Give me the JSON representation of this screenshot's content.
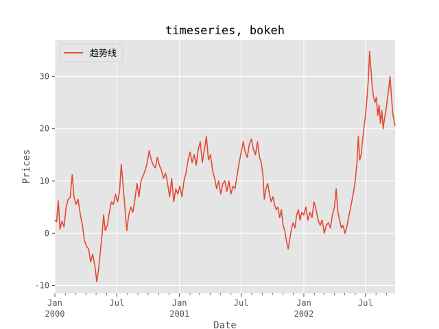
{
  "chart_data": {
    "type": "line",
    "title": "timeseries, bokeh",
    "xlabel": "Date",
    "ylabel": "Prices",
    "xlim": [
      "2000-01-01",
      "2002-09-26"
    ],
    "ylim": [
      -11.5,
      37.0
    ],
    "grid": true,
    "legend_position": "top-left",
    "x_major_ticks": [
      {
        "date": "2000-01-01",
        "line1": "Jan",
        "line2": "2000"
      },
      {
        "date": "2000-07-01",
        "line1": "Jul",
        "line2": ""
      },
      {
        "date": "2001-01-01",
        "line1": "Jan",
        "line2": "2001"
      },
      {
        "date": "2001-07-01",
        "line1": "Jul",
        "line2": ""
      },
      {
        "date": "2002-01-01",
        "line1": "Jan",
        "line2": "2002"
      },
      {
        "date": "2002-07-01",
        "line1": "Jul",
        "line2": ""
      }
    ],
    "y_ticks": [
      -10,
      0,
      10,
      20,
      30
    ],
    "series": [
      {
        "name": "趋势线",
        "color": "#E24A33",
        "points": [
          [
            "2000-01-01",
            2.5
          ],
          [
            "2000-01-06",
            2.2
          ],
          [
            "2000-01-11",
            6.2
          ],
          [
            "2000-01-16",
            0.8
          ],
          [
            "2000-01-22",
            2.3
          ],
          [
            "2000-01-28",
            1.2
          ],
          [
            "2000-02-03",
            5.0
          ],
          [
            "2000-02-09",
            6.5
          ],
          [
            "2000-02-15",
            6.8
          ],
          [
            "2000-02-21",
            11.2
          ],
          [
            "2000-02-26",
            7.0
          ],
          [
            "2000-03-03",
            5.5
          ],
          [
            "2000-03-09",
            6.5
          ],
          [
            "2000-03-16",
            3.5
          ],
          [
            "2000-03-22",
            1.5
          ],
          [
            "2000-03-28",
            -1.5
          ],
          [
            "2000-04-03",
            -2.5
          ],
          [
            "2000-04-09",
            -3.0
          ],
          [
            "2000-04-15",
            -5.5
          ],
          [
            "2000-04-21",
            -4.0
          ],
          [
            "2000-04-28",
            -6.5
          ],
          [
            "2000-05-03",
            -9.3
          ],
          [
            "2000-05-08",
            -7.0
          ],
          [
            "2000-05-13",
            -4.0
          ],
          [
            "2000-05-19",
            0.0
          ],
          [
            "2000-05-23",
            3.5
          ],
          [
            "2000-05-28",
            0.5
          ],
          [
            "2000-06-03",
            1.5
          ],
          [
            "2000-06-09",
            4.0
          ],
          [
            "2000-06-15",
            6.0
          ],
          [
            "2000-06-21",
            5.5
          ],
          [
            "2000-06-27",
            7.5
          ],
          [
            "2000-07-03",
            6.0
          ],
          [
            "2000-07-09",
            8.0
          ],
          [
            "2000-07-14",
            13.2
          ],
          [
            "2000-07-19",
            9.5
          ],
          [
            "2000-07-25",
            4.5
          ],
          [
            "2000-07-30",
            0.5
          ],
          [
            "2000-08-05",
            3.5
          ],
          [
            "2000-08-11",
            5.0
          ],
          [
            "2000-08-17",
            4.0
          ],
          [
            "2000-08-23",
            6.5
          ],
          [
            "2000-08-29",
            9.5
          ],
          [
            "2000-09-04",
            7.0
          ],
          [
            "2000-09-10",
            10.0
          ],
          [
            "2000-09-16",
            11.0
          ],
          [
            "2000-09-22",
            12.0
          ],
          [
            "2000-09-28",
            13.5
          ],
          [
            "2000-10-04",
            15.8
          ],
          [
            "2000-10-10",
            14.0
          ],
          [
            "2000-10-16",
            13.0
          ],
          [
            "2000-10-22",
            12.5
          ],
          [
            "2000-10-28",
            14.5
          ],
          [
            "2000-11-03",
            13.0
          ],
          [
            "2000-11-09",
            12.0
          ],
          [
            "2000-11-15",
            10.5
          ],
          [
            "2000-11-21",
            11.5
          ],
          [
            "2000-11-27",
            9.5
          ],
          [
            "2000-12-03",
            7.0
          ],
          [
            "2000-12-09",
            10.5
          ],
          [
            "2000-12-15",
            6.0
          ],
          [
            "2000-12-21",
            8.5
          ],
          [
            "2000-12-27",
            7.5
          ],
          [
            "2001-01-02",
            9.0
          ],
          [
            "2001-01-08",
            7.0
          ],
          [
            "2001-01-14",
            10.0
          ],
          [
            "2001-01-20",
            11.5
          ],
          [
            "2001-01-26",
            14.0
          ],
          [
            "2001-02-01",
            15.5
          ],
          [
            "2001-02-07",
            13.5
          ],
          [
            "2001-02-13",
            15.0
          ],
          [
            "2001-02-19",
            13.0
          ],
          [
            "2001-02-25",
            16.0
          ],
          [
            "2001-03-03",
            17.5
          ],
          [
            "2001-03-09",
            13.5
          ],
          [
            "2001-03-15",
            16.0
          ],
          [
            "2001-03-21",
            18.5
          ],
          [
            "2001-03-27",
            14.0
          ],
          [
            "2001-04-02",
            15.0
          ],
          [
            "2001-04-08",
            12.0
          ],
          [
            "2001-04-14",
            10.5
          ],
          [
            "2001-04-20",
            8.5
          ],
          [
            "2001-04-26",
            10.0
          ],
          [
            "2001-05-02",
            7.5
          ],
          [
            "2001-05-08",
            9.5
          ],
          [
            "2001-05-14",
            10.0
          ],
          [
            "2001-05-20",
            8.0
          ],
          [
            "2001-05-26",
            10.0
          ],
          [
            "2001-06-01",
            7.5
          ],
          [
            "2001-06-07",
            9.0
          ],
          [
            "2001-06-13",
            8.5
          ],
          [
            "2001-06-19",
            11.0
          ],
          [
            "2001-06-25",
            13.5
          ],
          [
            "2001-07-01",
            15.5
          ],
          [
            "2001-07-07",
            17.5
          ],
          [
            "2001-07-13",
            15.5
          ],
          [
            "2001-07-19",
            14.5
          ],
          [
            "2001-07-25",
            17.0
          ],
          [
            "2001-07-31",
            18.0
          ],
          [
            "2001-08-06",
            16.0
          ],
          [
            "2001-08-12",
            15.0
          ],
          [
            "2001-08-18",
            17.5
          ],
          [
            "2001-08-24",
            14.5
          ],
          [
            "2001-08-29",
            13.5
          ],
          [
            "2001-09-03",
            11.0
          ],
          [
            "2001-09-07",
            6.5
          ],
          [
            "2001-09-12",
            8.5
          ],
          [
            "2001-09-17",
            9.5
          ],
          [
            "2001-09-22",
            7.5
          ],
          [
            "2001-09-27",
            6.0
          ],
          [
            "2001-10-02",
            7.0
          ],
          [
            "2001-10-07",
            5.5
          ],
          [
            "2001-10-12",
            4.5
          ],
          [
            "2001-10-17",
            5.0
          ],
          [
            "2001-10-22",
            3.0
          ],
          [
            "2001-10-27",
            4.5
          ],
          [
            "2001-11-01",
            1.5
          ],
          [
            "2001-11-06",
            0.5
          ],
          [
            "2001-11-11",
            -1.5
          ],
          [
            "2001-11-16",
            -3.0
          ],
          [
            "2001-11-21",
            -1.0
          ],
          [
            "2001-11-26",
            1.0
          ],
          [
            "2001-12-01",
            2.0
          ],
          [
            "2001-12-06",
            1.0
          ],
          [
            "2001-12-11",
            3.5
          ],
          [
            "2001-12-16",
            4.5
          ],
          [
            "2001-12-21",
            2.5
          ],
          [
            "2001-12-26",
            4.0
          ],
          [
            "2002-01-01",
            3.5
          ],
          [
            "2002-01-07",
            5.0
          ],
          [
            "2002-01-13",
            2.5
          ],
          [
            "2002-01-19",
            4.0
          ],
          [
            "2002-01-25",
            3.0
          ],
          [
            "2002-01-31",
            6.0
          ],
          [
            "2002-02-06",
            4.5
          ],
          [
            "2002-02-12",
            2.5
          ],
          [
            "2002-02-18",
            1.5
          ],
          [
            "2002-02-24",
            2.5
          ],
          [
            "2002-03-02",
            0.0
          ],
          [
            "2002-03-08",
            1.5
          ],
          [
            "2002-03-14",
            2.0
          ],
          [
            "2002-03-20",
            1.0
          ],
          [
            "2002-03-26",
            3.5
          ],
          [
            "2002-04-01",
            5.0
          ],
          [
            "2002-04-06",
            8.5
          ],
          [
            "2002-04-11",
            4.0
          ],
          [
            "2002-04-16",
            2.5
          ],
          [
            "2002-04-21",
            1.0
          ],
          [
            "2002-04-26",
            1.5
          ],
          [
            "2002-05-02",
            0.0
          ],
          [
            "2002-05-08",
            1.5
          ],
          [
            "2002-05-14",
            3.5
          ],
          [
            "2002-05-20",
            5.5
          ],
          [
            "2002-05-26",
            7.5
          ],
          [
            "2002-06-01",
            10.0
          ],
          [
            "2002-06-06",
            13.5
          ],
          [
            "2002-06-10",
            18.5
          ],
          [
            "2002-06-14",
            14.0
          ],
          [
            "2002-06-18",
            15.0
          ],
          [
            "2002-06-22",
            17.5
          ],
          [
            "2002-06-27",
            20.5
          ],
          [
            "2002-07-01",
            22.5
          ],
          [
            "2002-07-05",
            25.5
          ],
          [
            "2002-07-09",
            29.0
          ],
          [
            "2002-07-13",
            34.8
          ],
          [
            "2002-07-17",
            31.5
          ],
          [
            "2002-07-21",
            28.0
          ],
          [
            "2002-07-25",
            26.0
          ],
          [
            "2002-07-29",
            25.0
          ],
          [
            "2002-08-02",
            26.0
          ],
          [
            "2002-08-06",
            22.5
          ],
          [
            "2002-08-10",
            24.5
          ],
          [
            "2002-08-14",
            21.0
          ],
          [
            "2002-08-18",
            23.5
          ],
          [
            "2002-08-22",
            20.0
          ],
          [
            "2002-08-26",
            22.0
          ],
          [
            "2002-08-30",
            23.5
          ],
          [
            "2002-09-03",
            25.5
          ],
          [
            "2002-09-07",
            27.5
          ],
          [
            "2002-09-11",
            30.0
          ],
          [
            "2002-09-15",
            26.5
          ],
          [
            "2002-09-19",
            23.0
          ],
          [
            "2002-09-23",
            21.5
          ],
          [
            "2002-09-26",
            20.5
          ]
        ]
      }
    ]
  }
}
